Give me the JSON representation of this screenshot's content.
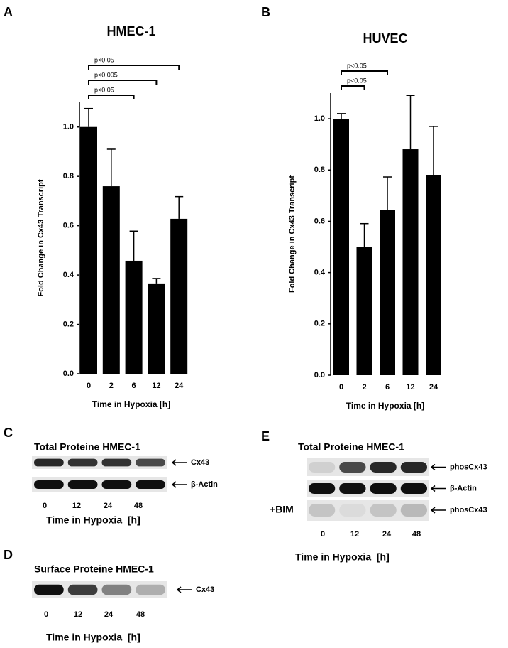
{
  "chart_data": [
    {
      "type": "bar",
      "panel": "A",
      "title": "HMEC-1",
      "x_label": "Time in Hypoxia [h]",
      "y_label": "Fold Change in Cx43 Transcript",
      "categories": [
        "0",
        "2",
        "6",
        "12",
        "24"
      ],
      "values": [
        1.0,
        0.76,
        0.458,
        0.366,
        0.628
      ],
      "errors": [
        0.075,
        0.15,
        0.12,
        0.02,
        0.09
      ],
      "color": "#000000",
      "ylim": [
        0,
        1.1
      ],
      "yticks": [
        {
          "value": 0,
          "label": "0.0"
        },
        {
          "value": 0.2,
          "label": "0.2"
        },
        {
          "value": 0.4,
          "label": "0.4"
        },
        {
          "value": 0.6,
          "label": "0.6"
        },
        {
          "value": 0.8,
          "label": "0.8"
        },
        {
          "value": 1,
          "label": "1.0"
        }
      ],
      "annotations": [
        {
          "label": "p<0.05",
          "from": "0",
          "to": "6"
        },
        {
          "label": "p<0.005",
          "from": "0",
          "to": "12"
        },
        {
          "label": "p<0.05",
          "from": "0",
          "to": "24"
        }
      ]
    },
    {
      "type": "bar",
      "panel": "B",
      "title": "HUVEC",
      "x_label": "Time in Hypoxia [h]",
      "y_label": "Fold Change in Cx43 Transcript",
      "categories": [
        "0",
        "2",
        "6",
        "12",
        "24"
      ],
      "values": [
        1.0,
        0.501,
        0.643,
        0.881,
        0.78
      ],
      "errors": [
        0.02,
        0.09,
        0.13,
        0.21,
        0.19
      ],
      "color": "#000000",
      "ylim": [
        0,
        1.1
      ],
      "yticks": [
        {
          "value": 0,
          "label": "0.0"
        },
        {
          "value": 0.2,
          "label": "0.2"
        },
        {
          "value": 0.4,
          "label": "0.4"
        },
        {
          "value": 0.6,
          "label": "0.6"
        },
        {
          "value": 0.8,
          "label": "0.8"
        },
        {
          "value": 1,
          "label": "1.0"
        }
      ],
      "annotations": [
        {
          "label": "p<0.05",
          "from": "0",
          "to": "2"
        },
        {
          "label": "p<0.05",
          "from": "0",
          "to": "6"
        }
      ]
    }
  ],
  "blots": [
    {
      "panel": "C",
      "title": "Total Proteine HMEC-1",
      "rows": [
        {
          "label": "Cx43"
        },
        {
          "label": "β-Actin"
        }
      ],
      "lanes": [
        "0",
        "12",
        "24",
        "48"
      ],
      "x_label": "Time in Hypoxia  [h]"
    },
    {
      "panel": "D",
      "title": "Surface Proteine HMEC-1",
      "rows": [
        {
          "label": "Cx43"
        }
      ],
      "lanes": [
        "0",
        "12",
        "24",
        "48"
      ],
      "x_label": "Time in Hypoxia  [h]"
    },
    {
      "panel": "E",
      "title": "Total Proteine HMEC-1",
      "rows": [
        {
          "label": "phosCx43"
        },
        {
          "label": "β-Actin"
        },
        {
          "label": "phosCx43",
          "side": "+BIM"
        }
      ],
      "lanes": [
        "0",
        "12",
        "24",
        "48"
      ],
      "x_label": "Time in Hypoxia  [h]"
    }
  ]
}
